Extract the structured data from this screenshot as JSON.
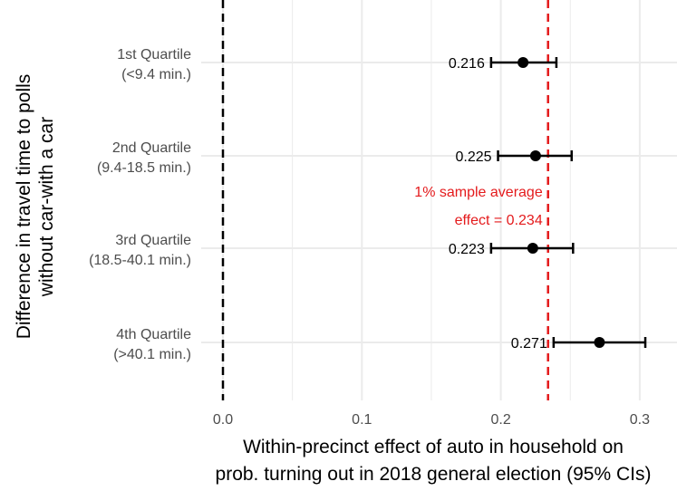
{
  "chart_data": {
    "type": "scatter",
    "orientation": "horizontal",
    "title": "",
    "xlabel_lines": [
      "Within-precinct effect of auto in household on",
      "prob. turning out in 2018 general election (95% CIs)"
    ],
    "ylabel_lines": [
      "Difference in travel time to polls",
      "without car-with a car"
    ],
    "xlim": [
      -0.015,
      0.315
    ],
    "x_ticks": [
      0.0,
      0.1,
      0.2,
      0.3
    ],
    "x_tick_labels": [
      "0.0",
      "0.1",
      "0.2",
      "0.3"
    ],
    "grid": true,
    "categories": [
      {
        "line1": "1st Quartile",
        "line2": "(<9.4 min.)"
      },
      {
        "line1": "2nd Quartile",
        "line2": "(9.4-18.5 min.)"
      },
      {
        "line1": "3rd Quartile",
        "line2": "(18.5-40.1 min.)"
      },
      {
        "line1": "4th Quartile",
        "line2": "(>40.1 min.)"
      }
    ],
    "points": [
      {
        "estimate": 0.216,
        "ci_low": 0.193,
        "ci_high": 0.24,
        "label": "0.216"
      },
      {
        "estimate": 0.225,
        "ci_low": 0.198,
        "ci_high": 0.251,
        "label": "0.225"
      },
      {
        "estimate": 0.223,
        "ci_low": 0.193,
        "ci_high": 0.252,
        "label": "0.223"
      },
      {
        "estimate": 0.271,
        "ci_low": 0.238,
        "ci_high": 0.304,
        "label": "0.271"
      }
    ],
    "reference_lines": [
      {
        "x": 0.0,
        "color": "#000000",
        "style": "dashed"
      },
      {
        "x": 0.234,
        "color": "#e41a1c",
        "style": "dashed"
      }
    ],
    "annotation": {
      "lines": [
        "1% sample average",
        "effect = 0.234"
      ],
      "color": "#e41a1c"
    },
    "colors": {
      "point": "#000000",
      "grid": "#ebebeb",
      "avg_line": "#e41a1c"
    }
  }
}
